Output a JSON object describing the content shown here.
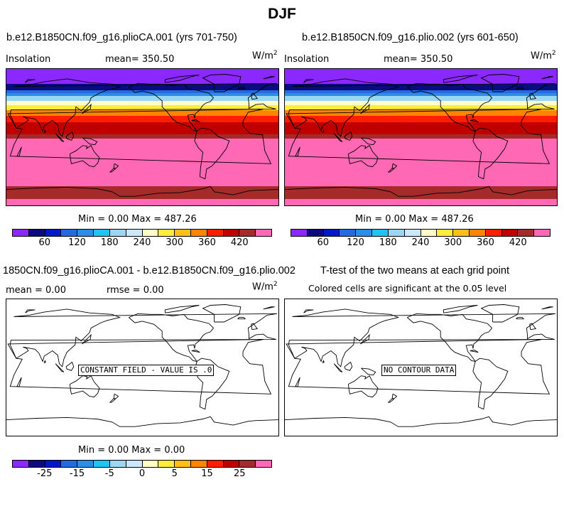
{
  "figure": {
    "title": "DJF"
  },
  "palette": [
    "#8b28ff",
    "#0c0a7e",
    "#0018c8",
    "#246be0",
    "#2c8ee8",
    "#1ec4f4",
    "#9cd6f2",
    "#cbe8ff",
    "#ffffc8",
    "#ffec3c",
    "#ffbe18",
    "#ff8400",
    "#ff1e00",
    "#c00000",
    "#a52a2a",
    "#ff68b4"
  ],
  "panels": {
    "top_left": {
      "title": "b.e12.B1850CN.f09_g16.plioCA.001 (yrs 701-750)",
      "left_label": "Insolation",
      "mean_label": "mean=  350.50",
      "units": "W/m",
      "units_sup": "2"
    },
    "top_right": {
      "title": "b.e12.B1850CN.f09_g16.plio.002 (yrs 601-650)",
      "left_label": "Insolation",
      "mean_label": "mean=  350.50",
      "units": "W/m",
      "units_sup": "2"
    },
    "bottom_left": {
      "title": "1850CN.f09_g16.plioCA.001 - b.e12.B1850CN.f09_g16.plio.002",
      "mean_label": "mean =    0.00",
      "rmse_label": "rmse =    0.00",
      "units": "W/m",
      "units_sup": "2",
      "message": "CONSTANT FIELD - VALUE IS .0"
    },
    "bottom_right": {
      "title": "T-test of the two means at each grid point",
      "subtitle": "Colored cells are significant at the 0.05 level",
      "message": "NO CONTOUR DATA"
    }
  },
  "colorbars": {
    "top_minmax": "Min =    0.00 Max = 487.26",
    "bottom_minmax": "Min =    0.00 Max =    0.00",
    "top_ticks": [
      "60",
      "120",
      "180",
      "240",
      "300",
      "360",
      "420"
    ],
    "bottom_ticks": [
      "-25",
      "-15",
      "-5",
      "0",
      "5",
      "15",
      "25"
    ]
  },
  "chart_data": [
    {
      "type": "heatmap",
      "title": "b.e12.B1850CN.f09_g16.plioCA.001 (yrs 701-750)",
      "field": "Insolation",
      "units": "W/m2",
      "mean": 350.5,
      "min": 0.0,
      "max": 487.26,
      "contour_levels": [
        30,
        60,
        90,
        120,
        150,
        180,
        210,
        240,
        270,
        300,
        330,
        360,
        390,
        420,
        450
      ],
      "zonal_bands": [
        {
          "lat_range": [
            90,
            70
          ],
          "value": 0
        },
        {
          "lat_range": [
            70,
            62
          ],
          "value": 45
        },
        {
          "lat_range": [
            62,
            58
          ],
          "value": 90
        },
        {
          "lat_range": [
            58,
            54
          ],
          "value": 140
        },
        {
          "lat_range": [
            54,
            48
          ],
          "value": 190
        },
        {
          "lat_range": [
            48,
            42
          ],
          "value": 240
        },
        {
          "lat_range": [
            42,
            36
          ],
          "value": 290
        },
        {
          "lat_range": [
            36,
            28
          ],
          "value": 330
        },
        {
          "lat_range": [
            28,
            20
          ],
          "value": 370
        },
        {
          "lat_range": [
            20,
            12
          ],
          "value": 395
        },
        {
          "lat_range": [
            12,
            4
          ],
          "value": 415
        },
        {
          "lat_range": [
            4,
            -2
          ],
          "value": 440
        },
        {
          "lat_range": [
            -2,
            -65
          ],
          "value": 470
        },
        {
          "lat_range": [
            -65,
            -82
          ],
          "value": 440
        },
        {
          "lat_range": [
            -82,
            -90
          ],
          "value": 475
        }
      ]
    },
    {
      "type": "heatmap",
      "title": "b.e12.B1850CN.f09_g16.plio.002 (yrs 601-650)",
      "field": "Insolation",
      "units": "W/m2",
      "mean": 350.5,
      "min": 0.0,
      "max": 487.26,
      "contour_levels": [
        30,
        60,
        90,
        120,
        150,
        180,
        210,
        240,
        270,
        300,
        330,
        360,
        390,
        420,
        450
      ],
      "zonal_bands": [
        {
          "lat_range": [
            90,
            70
          ],
          "value": 0
        },
        {
          "lat_range": [
            70,
            62
          ],
          "value": 45
        },
        {
          "lat_range": [
            62,
            58
          ],
          "value": 90
        },
        {
          "lat_range": [
            58,
            54
          ],
          "value": 140
        },
        {
          "lat_range": [
            54,
            48
          ],
          "value": 190
        },
        {
          "lat_range": [
            48,
            42
          ],
          "value": 240
        },
        {
          "lat_range": [
            42,
            36
          ],
          "value": 290
        },
        {
          "lat_range": [
            36,
            28
          ],
          "value": 330
        },
        {
          "lat_range": [
            28,
            20
          ],
          "value": 370
        },
        {
          "lat_range": [
            20,
            12
          ],
          "value": 395
        },
        {
          "lat_range": [
            12,
            4
          ],
          "value": 415
        },
        {
          "lat_range": [
            4,
            -2
          ],
          "value": 440
        },
        {
          "lat_range": [
            -2,
            -65
          ],
          "value": 470
        },
        {
          "lat_range": [
            -65,
            -82
          ],
          "value": 440
        },
        {
          "lat_range": [
            -82,
            -90
          ],
          "value": 475
        }
      ]
    },
    {
      "type": "heatmap",
      "title": "1850CN.f09_g16.plioCA.001 - b.e12.B1850CN.f09_g16.plio.002",
      "units": "W/m2",
      "mean": 0.0,
      "rmse": 0.0,
      "min": 0.0,
      "max": 0.0,
      "contour_levels": [
        -30,
        -25,
        -20,
        -15,
        -10,
        -5,
        0,
        5,
        10,
        15,
        20,
        25,
        30
      ],
      "zonal_bands": []
    },
    {
      "type": "heatmap",
      "title": "T-test of the two means at each grid point",
      "subtitle": "Colored cells are significant at the 0.05 level",
      "zonal_bands": []
    }
  ]
}
